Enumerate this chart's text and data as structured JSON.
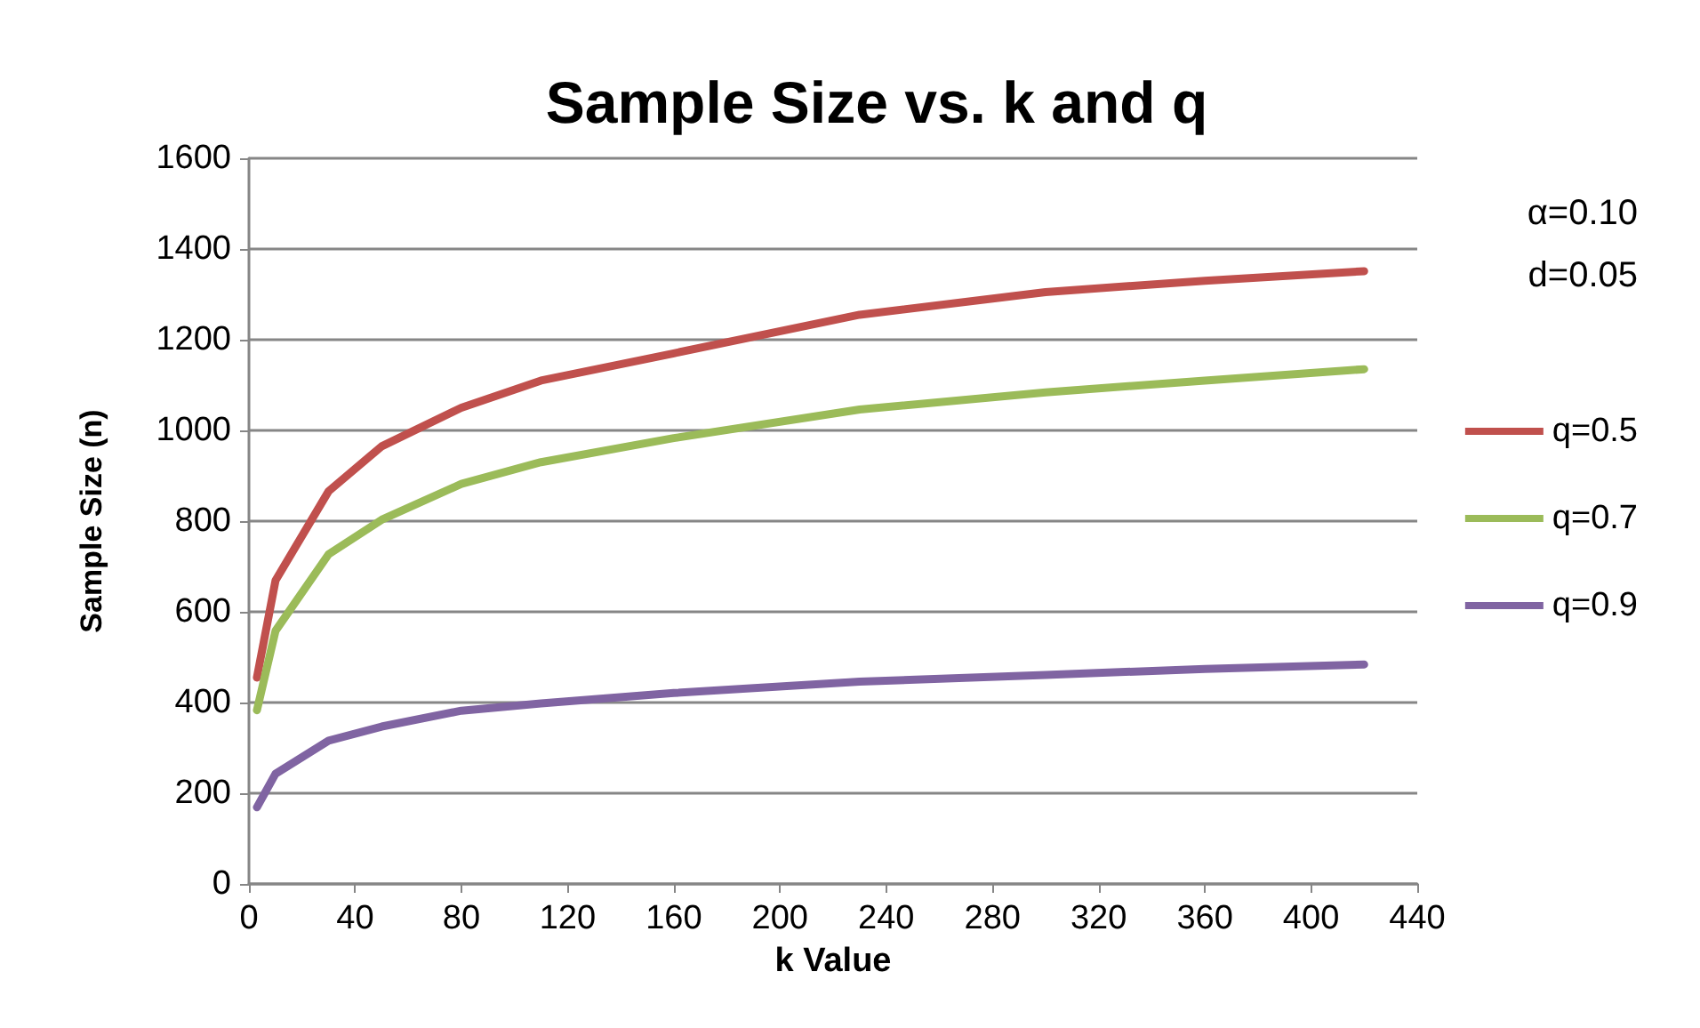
{
  "chart_data": {
    "type": "line",
    "title": "Sample Size vs. k and q",
    "xlabel": "k Value",
    "ylabel": "Sample Size (n)",
    "annotations": [
      "α=0.10",
      "d=0.05"
    ],
    "x": [
      3,
      10,
      30,
      50,
      80,
      110,
      160,
      230,
      300,
      360,
      420
    ],
    "series": [
      {
        "name": "q=0.5",
        "color": "#c0504d",
        "values": [
          455,
          669,
          866,
          965,
          1050,
          1110,
          1170,
          1255,
          1305,
          1330,
          1351
        ]
      },
      {
        "name": "q=0.7",
        "color": "#9bbb59",
        "values": [
          383,
          558,
          727,
          803,
          882,
          930,
          983,
          1046,
          1084,
          1110,
          1135
        ]
      },
      {
        "name": "q=0.9",
        "color": "#8064a2",
        "values": [
          169,
          243,
          316,
          347,
          382,
          398,
          421,
          446,
          461,
          474,
          484
        ]
      }
    ],
    "xlim": [
      0,
      440
    ],
    "xticks": [
      0,
      40,
      80,
      120,
      160,
      200,
      240,
      280,
      320,
      360,
      400,
      440
    ],
    "ylim": [
      0,
      1600
    ],
    "yticks": [
      0,
      200,
      400,
      600,
      800,
      1000,
      1200,
      1400,
      1600
    ],
    "grid": "y",
    "legend": "right",
    "marker": "none",
    "line_style": "solid"
  }
}
